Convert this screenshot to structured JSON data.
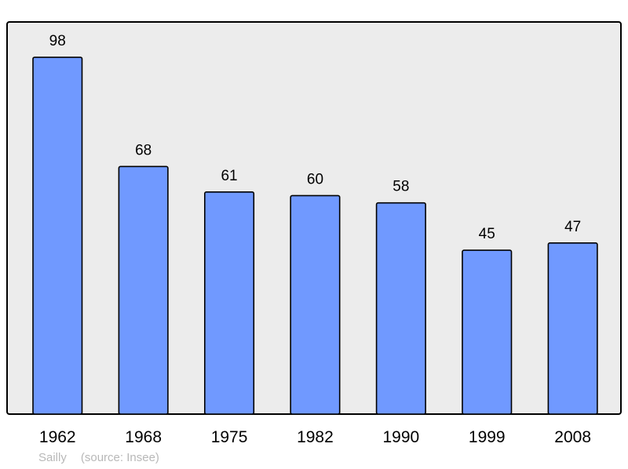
{
  "chart_data": {
    "type": "bar",
    "categories": [
      "1962",
      "1968",
      "1975",
      "1982",
      "1990",
      "1999",
      "2008"
    ],
    "values": [
      98,
      68,
      61,
      60,
      58,
      45,
      47
    ],
    "title": "",
    "xlabel": "",
    "ylabel": "",
    "ylim": [
      0,
      107.7
    ],
    "grid": false,
    "data_labels": true,
    "colors": {
      "bar": "#7099ff",
      "plot_background": "#ececec",
      "border": "#000000"
    }
  },
  "footer": {
    "place": "Sailly",
    "source": "(source: Insee)"
  }
}
